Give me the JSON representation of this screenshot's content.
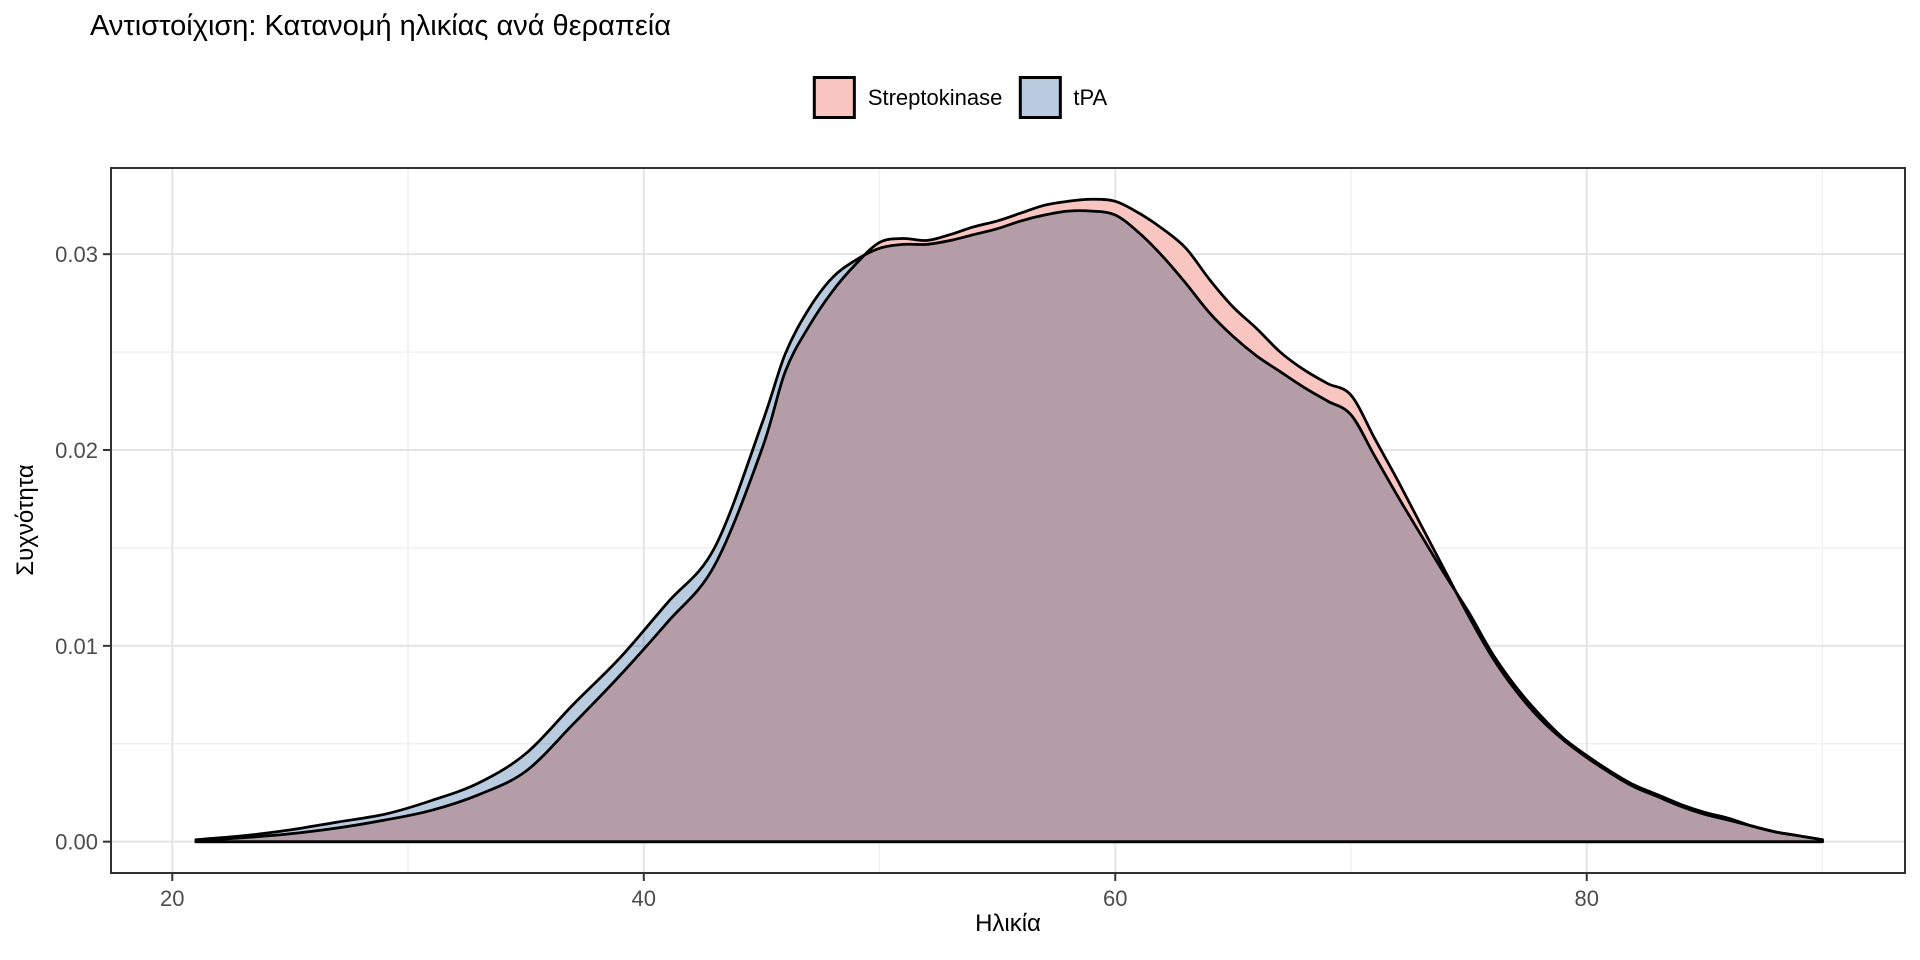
{
  "title": "Αντιστοίχιση: Κατανομή ηλικίας ανά θεραπεία",
  "legend": {
    "position": "top",
    "items": [
      {
        "label": "Streptokinase",
        "fill": "#F9C5C0"
      },
      {
        "label": "tPA",
        "fill": "#B9CBDE"
      }
    ]
  },
  "colors": {
    "streptokinase_fill": "#F9C5C0",
    "tpa_fill": "#B9CBDE",
    "curve_stroke": "#000000",
    "grid_major": "#E4E4E4",
    "grid_minor": "#F0F0F0",
    "panel_border": "#333333",
    "tick_mark": "#333333",
    "axis_text": "#4D4D4D",
    "background": "#FFFFFF"
  },
  "chart_data": {
    "type": "area",
    "subtype": "overlapping-density",
    "title": "Αντιστοίχιση: Κατανομή ηλικίας ανά θεραπεία",
    "xlabel": "Ηλικία",
    "ylabel": "Συχνότητα",
    "legend_position": "top",
    "grid": true,
    "xlim": [
      17.4,
      93.5
    ],
    "ylim": [
      -0.0016,
      0.0344
    ],
    "x_ticks": [
      20,
      40,
      60,
      80
    ],
    "x_tick_labels": [
      "20",
      "40",
      "60",
      "80"
    ],
    "x_minor_ticks": [
      30,
      50,
      70,
      90
    ],
    "y_ticks": [
      0,
      0.01,
      0.02,
      0.03
    ],
    "y_tick_labels": [
      "0.00",
      "0.01",
      "0.02",
      "0.03"
    ],
    "y_minor_ticks": [
      0.005,
      0.015,
      0.025
    ],
    "x": [
      21,
      23,
      25,
      27,
      29,
      31,
      33,
      35,
      37,
      39,
      41,
      43,
      45,
      46,
      47,
      48,
      49,
      50,
      51,
      52,
      53,
      54,
      55,
      56,
      57,
      58,
      59,
      60,
      61,
      62,
      63,
      64,
      65,
      66,
      67,
      68,
      69,
      70,
      71,
      72,
      73,
      74,
      75,
      76,
      77,
      78,
      79,
      80,
      81,
      82,
      83,
      84,
      85,
      86,
      87,
      88,
      89,
      90
    ],
    "series": [
      {
        "name": "Streptokinase",
        "fill": "#F9C5C0",
        "values": [
          5e-05,
          0.0002,
          0.0004,
          0.0007,
          0.0011,
          0.0016,
          0.0024,
          0.0036,
          0.006,
          0.0085,
          0.0112,
          0.0141,
          0.02,
          0.024,
          0.0263,
          0.0281,
          0.0295,
          0.0306,
          0.0308,
          0.0307,
          0.031,
          0.0314,
          0.0317,
          0.0321,
          0.0325,
          0.0327,
          0.0328,
          0.0327,
          0.0321,
          0.0313,
          0.0303,
          0.0287,
          0.0273,
          0.0262,
          0.025,
          0.0241,
          0.0234,
          0.0228,
          0.0206,
          0.0184,
          0.0161,
          0.0138,
          0.0115,
          0.0094,
          0.0077,
          0.0063,
          0.0052,
          0.0043,
          0.0035,
          0.0028,
          0.0023,
          0.0018,
          0.0014,
          0.0011,
          0.0008,
          0.0005,
          0.0003,
          0.0001
        ]
      },
      {
        "name": "tPA",
        "fill": "#B9CBDE",
        "values": [
          0.0001,
          0.0003,
          0.0006,
          0.001,
          0.0014,
          0.0021,
          0.003,
          0.0045,
          0.007,
          0.0094,
          0.0122,
          0.015,
          0.0213,
          0.0249,
          0.0272,
          0.0288,
          0.0297,
          0.0303,
          0.0305,
          0.0305,
          0.0307,
          0.031,
          0.0313,
          0.0317,
          0.032,
          0.0322,
          0.0322,
          0.032,
          0.0311,
          0.0299,
          0.0285,
          0.027,
          0.0258,
          0.0248,
          0.024,
          0.0232,
          0.0225,
          0.0218,
          0.0197,
          0.0176,
          0.0156,
          0.0136,
          0.0117,
          0.0096,
          0.0079,
          0.0065,
          0.0053,
          0.0044,
          0.0036,
          0.0029,
          0.0024,
          0.0019,
          0.0015,
          0.0012,
          0.0008,
          0.0005,
          0.0003,
          0.0001
        ]
      }
    ]
  }
}
